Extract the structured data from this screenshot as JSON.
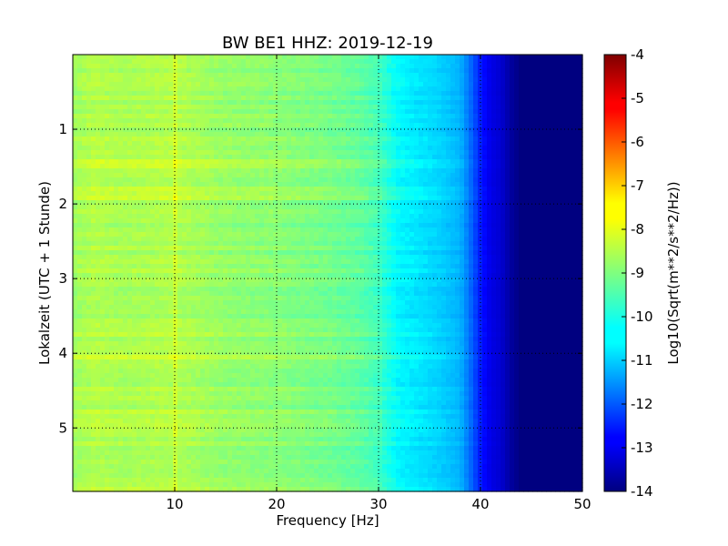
{
  "chart_data": {
    "type": "heatmap",
    "title": "BW BE1 HHZ: 2019-12-19",
    "xlabel": "Frequency [Hz]",
    "ylabel": "Lokalzeit (UTC + 1 Stunde)",
    "xlim": [
      0,
      50
    ],
    "ylim": [
      5.85,
      0
    ],
    "x_ticks": [
      "10",
      "20",
      "30",
      "40",
      "50"
    ],
    "y_ticks": [
      "1",
      "2",
      "3",
      "4",
      "5"
    ],
    "grid": true,
    "colormap": "jet",
    "colorbar": {
      "label": "Log10(Sqrt(m**2/s**2/Hz))",
      "range": [
        -14,
        -4
      ],
      "ticks": [
        "-4",
        "-5",
        "-6",
        "-7",
        "-8",
        "-9",
        "-10",
        "-11",
        "-12",
        "-13",
        "-14"
      ]
    },
    "spectrum_profile": {
      "frequency_hz": [
        0,
        2,
        5,
        10,
        15,
        20,
        25,
        28,
        30,
        31,
        32,
        34,
        36,
        38,
        39,
        40,
        41,
        42,
        43,
        44,
        50
      ],
      "log10_amplitude": [
        -8.7,
        -8.5,
        -8.6,
        -8.5,
        -8.8,
        -8.9,
        -9.1,
        -9.3,
        -9.6,
        -10.0,
        -10.3,
        -10.5,
        -10.7,
        -11.0,
        -11.7,
        -12.5,
        -13.0,
        -13.2,
        -13.7,
        -14.0,
        -14.0
      ]
    }
  }
}
